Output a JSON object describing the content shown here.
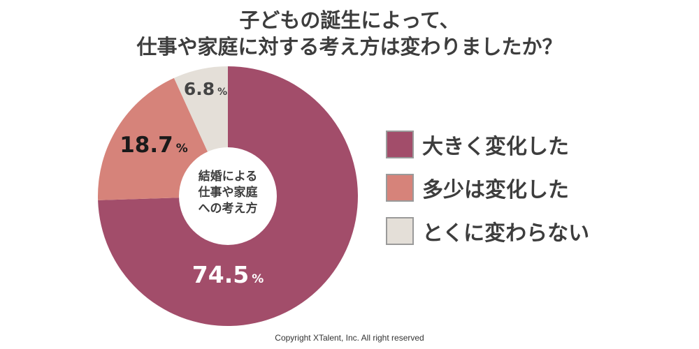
{
  "title": {
    "line1": "子どもの誕生によって、",
    "line2": "仕事や家庭に対する考え方は変わりましたか？"
  },
  "chart_data": {
    "type": "pie",
    "donut": true,
    "center_label": [
      "結婚による",
      "仕事や家庭",
      "への考え方"
    ],
    "unit": "%",
    "slices": [
      {
        "label": "大きく変化した",
        "value": 74.5,
        "display": "74.5",
        "color": "#a24d6a"
      },
      {
        "label": "多少は変化した",
        "value": 18.7,
        "display": "18.7",
        "color": "#d6837a"
      },
      {
        "label": "とくに変わらない",
        "value": 6.8,
        "display": "6.8",
        "color": "#e4dfd8"
      }
    ],
    "legend_position": "right"
  },
  "footer": {
    "copyright": "Copyright XTalent, Inc. All right reserved"
  }
}
